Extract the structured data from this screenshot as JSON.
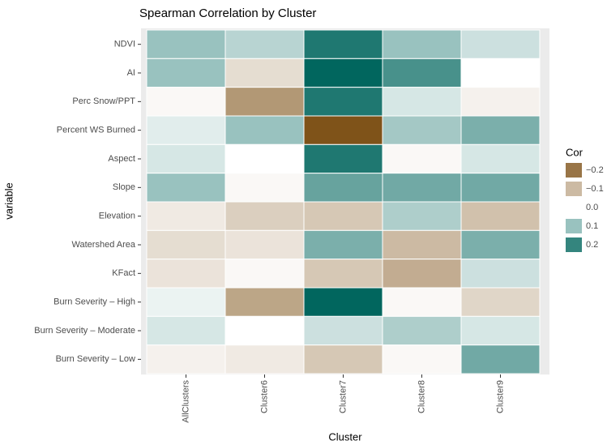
{
  "chart_data": {
    "type": "heatmap",
    "title": "Spearman Correlation by Cluster",
    "x_label": "Cluster",
    "y_label": "variable",
    "x": [
      "AllClusters",
      "Cluster6",
      "Cluster7",
      "Cluster8",
      "Cluster9"
    ],
    "y": [
      "NDVI",
      "AI",
      "Perc Snow/PPT",
      "Percent WS Burned",
      "Aspect",
      "Slope",
      "Elevation",
      "Watershed Area",
      "KFact",
      "Burn Severity – High",
      "Burn Severity – Moderate",
      "Burn Severity – Low"
    ],
    "values": [
      [
        0.1,
        0.07,
        0.22,
        0.1,
        0.05
      ],
      [
        0.1,
        -0.05,
        0.25,
        0.18,
        0.0
      ],
      [
        -0.01,
        -0.15,
        0.22,
        0.04,
        -0.02
      ],
      [
        0.03,
        0.1,
        -0.25,
        0.09,
        0.13
      ],
      [
        0.04,
        0.0,
        0.22,
        -0.01,
        0.04
      ],
      [
        0.1,
        -0.01,
        0.15,
        0.14,
        0.14
      ],
      [
        -0.03,
        -0.07,
        -0.08,
        0.08,
        -0.09
      ],
      [
        -0.05,
        -0.04,
        0.13,
        -0.1,
        0.13
      ],
      [
        -0.04,
        -0.01,
        -0.08,
        -0.12,
        0.05
      ],
      [
        0.02,
        -0.13,
        0.25,
        -0.01,
        -0.06
      ],
      [
        0.04,
        0.0,
        0.05,
        0.08,
        0.04
      ],
      [
        -0.02,
        -0.03,
        -0.08,
        -0.01,
        0.14
      ]
    ],
    "legend_title": "Cor",
    "clim": [
      -0.25,
      0.25
    ],
    "cticks": [
      {
        "value": -0.2,
        "label": "−0.2"
      },
      {
        "value": -0.1,
        "label": "−0.1"
      },
      {
        "value": 0,
        "label": "0.0"
      },
      0.1,
      0.2
    ],
    "colors": {
      "low": "#7f5319",
      "mid": "#ffffff",
      "high": "#01665e"
    }
  }
}
